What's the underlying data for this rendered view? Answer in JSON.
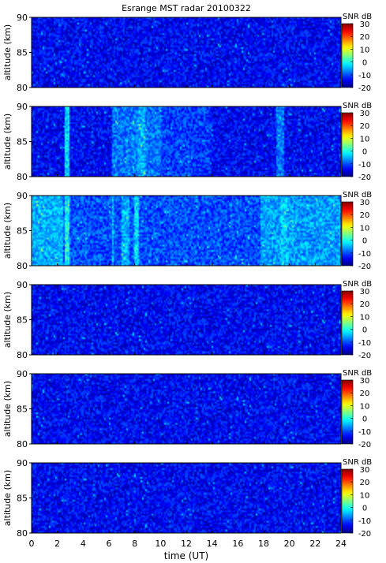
{
  "chart_data": {
    "type": "heatmap",
    "title": "Esrange MST radar 20100322",
    "xlabel": "time (UT)",
    "xlim": [
      0,
      24
    ],
    "x_ticks": [
      "0",
      "2",
      "4",
      "6",
      "8",
      "10",
      "12",
      "14",
      "16",
      "18",
      "20",
      "22",
      "24"
    ],
    "colorbar": {
      "label": "SNR dB",
      "range": [
        -20,
        30
      ],
      "ticks": [
        "30",
        "20",
        "10",
        "0",
        "-10",
        "-20"
      ],
      "colormap": "jet"
    },
    "panels": [
      {
        "ylabel": "altitude (km)",
        "ylim": [
          80,
          90
        ],
        "y_ticks": [
          "90",
          "85",
          "80"
        ],
        "background_snr_db": -14,
        "features": []
      },
      {
        "ylabel": "altitude (km)",
        "ylim": [
          80,
          90
        ],
        "y_ticks": [
          "90",
          "85",
          "80"
        ],
        "background_snr_db": -14,
        "features": [
          {
            "t_start": 2.6,
            "t_end": 3.0,
            "snr_db": -3
          },
          {
            "t_start": 6.3,
            "t_end": 6.5,
            "snr_db": -8
          },
          {
            "t_start": 6.5,
            "t_end": 10.0,
            "snr_db": -8
          },
          {
            "t_start": 8.2,
            "t_end": 8.8,
            "snr_db": -5
          },
          {
            "t_start": 10.0,
            "t_end": 14.0,
            "snr_db": -11
          },
          {
            "t_start": 19.0,
            "t_end": 19.6,
            "snr_db": -8
          }
        ]
      },
      {
        "ylabel": "altitude (km)",
        "ylim": [
          80,
          90
        ],
        "y_ticks": [
          "90",
          "85",
          "80"
        ],
        "background_snr_db": -10,
        "features": [
          {
            "t_start": 0.0,
            "t_end": 2.5,
            "snr_db": -5
          },
          {
            "t_start": 2.6,
            "t_end": 3.0,
            "snr_db": -1
          },
          {
            "t_start": 6.2,
            "t_end": 6.4,
            "snr_db": -4
          },
          {
            "t_start": 7.0,
            "t_end": 7.6,
            "snr_db": -5
          },
          {
            "t_start": 8.0,
            "t_end": 8.3,
            "snr_db": -3
          },
          {
            "t_start": 17.8,
            "t_end": 24.0,
            "snr_db": -6
          },
          {
            "t_start": 19.3,
            "t_end": 19.8,
            "snr_db": -4
          }
        ]
      },
      {
        "ylabel": "altitude (km)",
        "ylim": [
          80,
          90
        ],
        "y_ticks": [
          "90",
          "85",
          "80"
        ],
        "background_snr_db": -14,
        "features": []
      },
      {
        "ylabel": "altitude (km)",
        "ylim": [
          80,
          90
        ],
        "y_ticks": [
          "90",
          "85",
          "80"
        ],
        "background_snr_db": -14,
        "features": []
      },
      {
        "ylabel": "altitude (km)",
        "ylim": [
          80,
          90
        ],
        "y_ticks": [
          "90",
          "85",
          "80"
        ],
        "background_snr_db": -14,
        "features": []
      }
    ]
  }
}
